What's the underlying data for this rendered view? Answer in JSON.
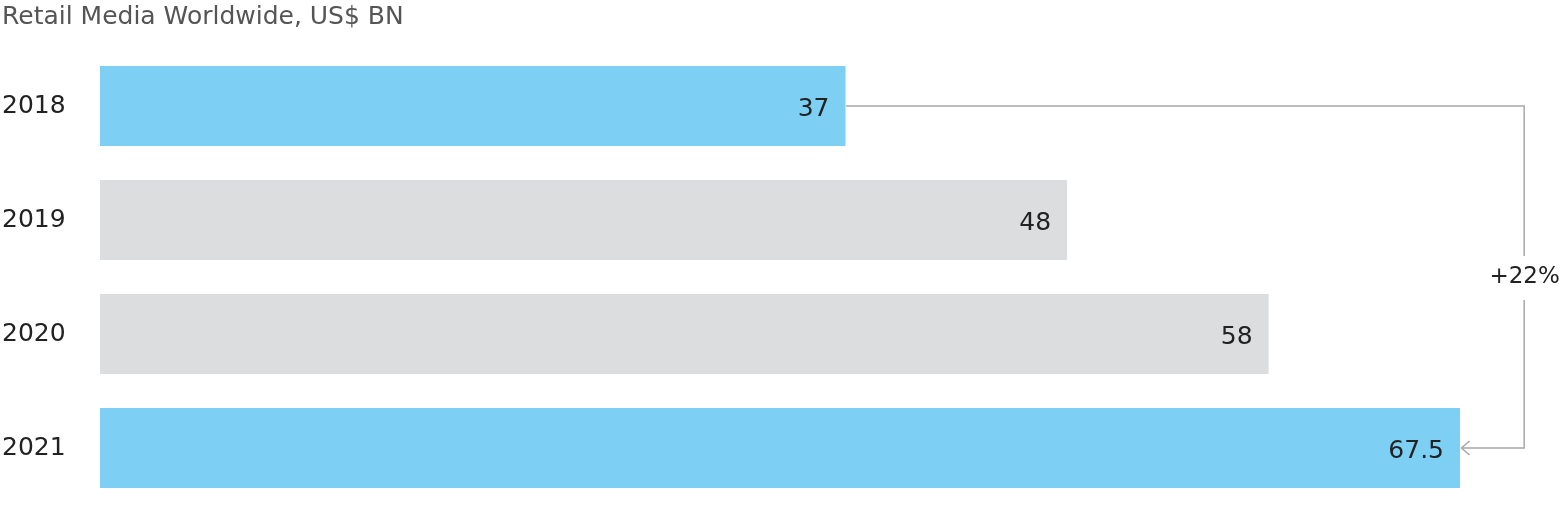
{
  "chart_data": {
    "type": "bar",
    "orientation": "horizontal",
    "title": "Retail Media Worldwide, US$ BN",
    "categories": [
      "2018",
      "2019",
      "2020",
      "2021"
    ],
    "values": [
      37,
      48,
      58,
      67.5
    ],
    "colors": [
      "#7dcff3",
      "#dcdddf",
      "#dcdddf",
      "#7dcff3"
    ],
    "data_labels": true,
    "annotations": [
      "+22%"
    ]
  }
}
